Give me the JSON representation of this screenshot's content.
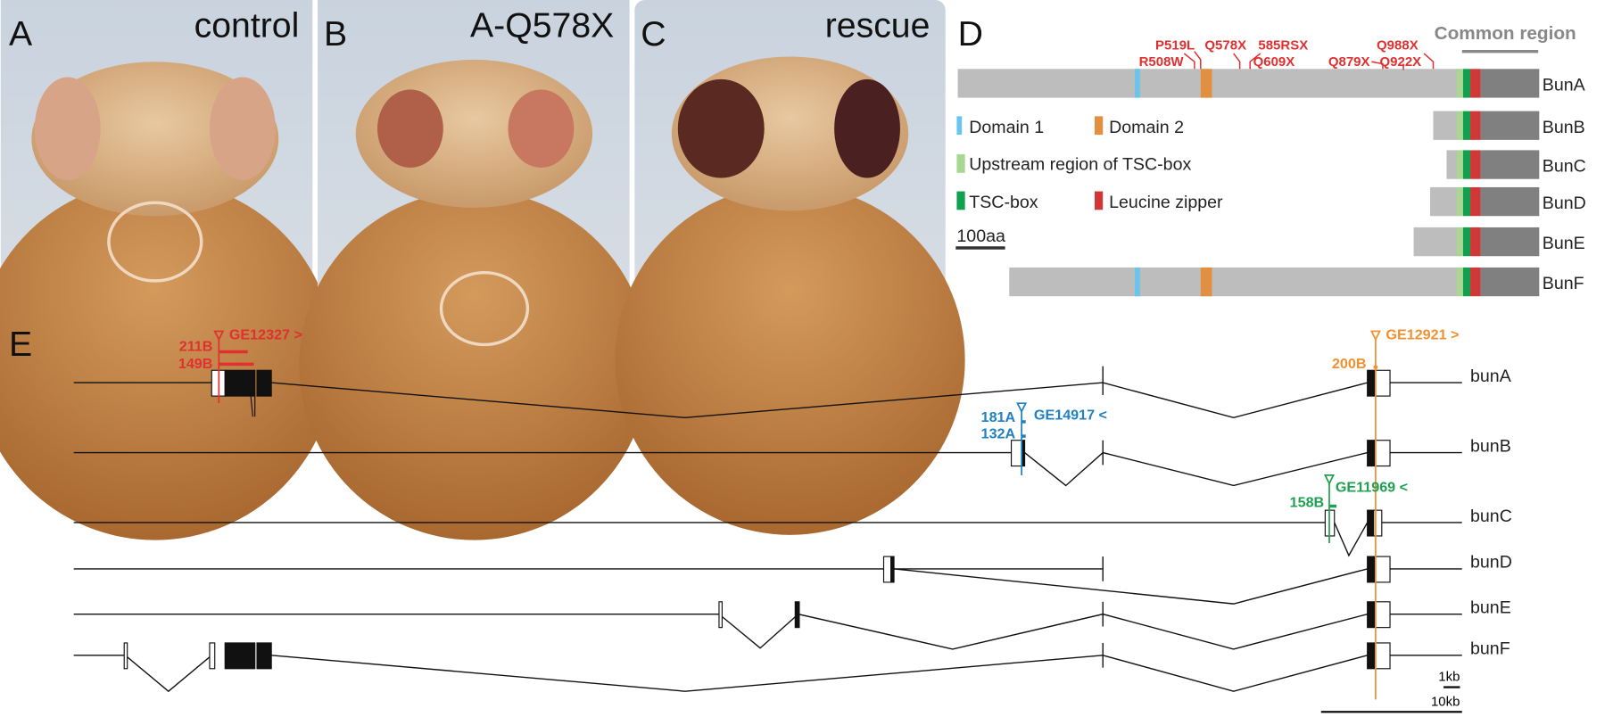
{
  "panels": [
    {
      "letter": "A",
      "label": "control"
    },
    {
      "letter": "B",
      "label": "A-Q578X"
    },
    {
      "letter": "C",
      "label": "rescue"
    }
  ],
  "panel_d": {
    "letter": "D",
    "common_region": "Common region",
    "mutations": [
      "P519L",
      "R508W",
      "Q578X",
      "585RSX",
      "Q609X",
      "Q879X",
      "Q988X",
      "Q922X"
    ],
    "isoforms": [
      "BunA",
      "BunB",
      "BunC",
      "BunD",
      "BunE",
      "BunF"
    ],
    "legend": [
      "Domain 1",
      "Domain 2",
      "Upstream region of TSC-box",
      "TSC-box",
      "Leucine zipper"
    ],
    "scale": "100aa"
  },
  "panel_e": {
    "letter": "E",
    "transcripts": [
      "bunA",
      "bunB",
      "bunC",
      "bunD",
      "bunE",
      "bunF"
    ],
    "insertions": [
      {
        "name": "GE12327 >",
        "alleles": [
          "211B",
          "149B"
        ]
      },
      {
        "name": "GE14917 <",
        "alleles": [
          "181A",
          "132A"
        ]
      },
      {
        "name": "GE11969 <",
        "alleles": [
          "158B"
        ]
      },
      {
        "name": "GE12921 >",
        "alleles": [
          "200B"
        ]
      }
    ],
    "scales": [
      "1kb",
      "10kb"
    ]
  }
}
